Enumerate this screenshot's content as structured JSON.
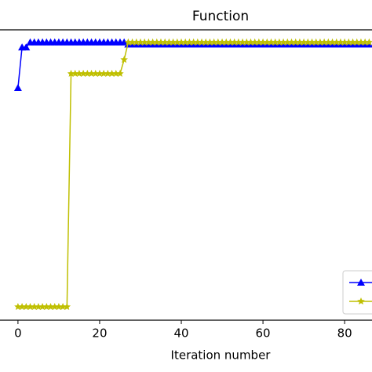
{
  "chart_data": {
    "type": "line",
    "title": "Function",
    "xlabel": "Iteration number",
    "x": [
      0,
      1,
      2,
      3,
      4,
      5,
      6,
      7,
      8,
      9,
      10,
      11,
      12,
      13,
      14,
      15,
      16,
      17,
      18,
      19,
      20,
      21,
      22,
      23,
      24,
      25,
      26,
      27,
      28,
      29,
      30,
      31,
      32,
      33,
      34,
      35,
      36,
      37,
      38,
      39,
      40,
      41,
      42,
      43,
      44,
      45,
      46,
      47,
      48,
      49,
      50,
      51,
      52,
      53,
      54,
      55,
      56,
      57,
      58,
      59,
      60,
      61,
      62,
      63,
      64,
      65,
      66,
      67,
      68,
      69,
      70,
      71,
      72,
      73,
      74,
      75,
      76,
      77,
      78,
      79,
      80,
      81,
      82,
      83,
      84,
      85,
      86
    ],
    "series": [
      {
        "color": "#0000ff",
        "marker": "triangle",
        "values": [
          0.8,
          0.94,
          0.94,
          0.957,
          0.957,
          0.957,
          0.957,
          0.957,
          0.957,
          0.957,
          0.957,
          0.957,
          0.957,
          0.957,
          0.957,
          0.957,
          0.957,
          0.957,
          0.957,
          0.957,
          0.957,
          0.957,
          0.957,
          0.957,
          0.957,
          0.957,
          0.957,
          0.95,
          0.95,
          0.95,
          0.95,
          0.95,
          0.95,
          0.95,
          0.95,
          0.95,
          0.95,
          0.95,
          0.95,
          0.95,
          0.95,
          0.95,
          0.95,
          0.95,
          0.95,
          0.95,
          0.95,
          0.95,
          0.95,
          0.95,
          0.95,
          0.95,
          0.95,
          0.95,
          0.95,
          0.95,
          0.95,
          0.95,
          0.95,
          0.95,
          0.95,
          0.95,
          0.95,
          0.95,
          0.95,
          0.95,
          0.95,
          0.95,
          0.95,
          0.95,
          0.95,
          0.95,
          0.95,
          0.95,
          0.95,
          0.95,
          0.95,
          0.95,
          0.95,
          0.95,
          0.95,
          0.95,
          0.95,
          0.95,
          0.95,
          0.95,
          0.95
        ]
      },
      {
        "color": "#bfbf00",
        "marker": "star",
        "values": [
          0.046,
          0.046,
          0.046,
          0.046,
          0.046,
          0.046,
          0.046,
          0.046,
          0.046,
          0.046,
          0.046,
          0.046,
          0.046,
          0.849,
          0.849,
          0.849,
          0.849,
          0.849,
          0.849,
          0.849,
          0.849,
          0.849,
          0.849,
          0.849,
          0.849,
          0.849,
          0.897,
          0.957,
          0.957,
          0.957,
          0.957,
          0.957,
          0.957,
          0.957,
          0.957,
          0.957,
          0.957,
          0.957,
          0.957,
          0.957,
          0.957,
          0.957,
          0.957,
          0.957,
          0.957,
          0.957,
          0.957,
          0.957,
          0.957,
          0.957,
          0.957,
          0.957,
          0.957,
          0.957,
          0.957,
          0.957,
          0.957,
          0.957,
          0.957,
          0.957,
          0.957,
          0.957,
          0.957,
          0.957,
          0.957,
          0.957,
          0.957,
          0.957,
          0.957,
          0.957,
          0.957,
          0.957,
          0.957,
          0.957,
          0.957,
          0.957,
          0.957,
          0.957,
          0.957,
          0.957,
          0.957,
          0.957,
          0.957,
          0.957,
          0.957,
          0.957,
          0.957
        ]
      }
    ],
    "xlim": [
      -4.4,
      86.7
    ],
    "ylim": [
      0,
      1
    ],
    "xticks": [
      0,
      20,
      40,
      60,
      80
    ],
    "legend": "lower right"
  }
}
